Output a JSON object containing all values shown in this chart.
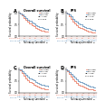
{
  "panels": [
    {
      "title": "A",
      "subtitle": "Overall survival",
      "ylabel": "Survival probability",
      "xlabel": "Follow-up (months)",
      "legend_labels": [
        "VAT-high",
        "VAT-low"
      ],
      "line_colors": [
        "#E8735A",
        "#5B8DB8"
      ],
      "curves": [
        {
          "x": [
            0,
            1,
            3,
            5,
            7,
            9,
            11,
            13,
            15,
            17,
            19,
            21,
            23,
            25,
            27,
            29,
            31
          ],
          "y": [
            1.0,
            0.96,
            0.88,
            0.78,
            0.68,
            0.6,
            0.52,
            0.46,
            0.4,
            0.35,
            0.31,
            0.27,
            0.24,
            0.21,
            0.19,
            0.18,
            0.17
          ]
        },
        {
          "x": [
            0,
            1,
            3,
            5,
            7,
            9,
            11,
            13,
            15,
            17,
            19,
            21,
            23,
            25,
            27,
            29,
            31
          ],
          "y": [
            1.0,
            0.97,
            0.92,
            0.85,
            0.77,
            0.7,
            0.63,
            0.57,
            0.52,
            0.47,
            0.43,
            0.39,
            0.36,
            0.33,
            0.31,
            0.29,
            0.28
          ]
        }
      ],
      "risk_rows": [
        {
          "label": "VAT-high",
          "color": "#E8735A",
          "values": [
            "101",
            "65",
            "41",
            "25",
            "14",
            "6"
          ]
        },
        {
          "label": "VAT-low",
          "color": "#5B8DB8",
          "values": [
            "148",
            "106",
            "74",
            "47",
            "30",
            "17"
          ]
        }
      ],
      "risk_timepoints": [
        "0",
        "6",
        "12",
        "18",
        "24",
        "30"
      ],
      "hr_text": "HR=1.88",
      "p_text": "p=0.003",
      "ylim": [
        0,
        1.05
      ],
      "xlim": [
        0,
        33
      ]
    },
    {
      "title": "B",
      "subtitle": "PFS",
      "ylabel": "Survival probability",
      "xlabel": "Follow-up (months)",
      "legend_labels": [
        "SAT-high",
        "SAT-low"
      ],
      "line_colors": [
        "#E8735A",
        "#5B8DB8"
      ],
      "curves": [
        {
          "x": [
            0,
            1,
            3,
            5,
            7,
            9,
            11,
            13,
            15,
            17,
            19,
            21,
            23,
            25,
            27,
            29,
            31
          ],
          "y": [
            1.0,
            0.95,
            0.85,
            0.73,
            0.62,
            0.53,
            0.45,
            0.39,
            0.33,
            0.29,
            0.25,
            0.22,
            0.19,
            0.17,
            0.15,
            0.14,
            0.13
          ]
        },
        {
          "x": [
            0,
            1,
            3,
            5,
            7,
            9,
            11,
            13,
            15,
            17,
            19,
            21,
            23,
            25,
            27,
            29,
            31
          ],
          "y": [
            1.0,
            0.97,
            0.9,
            0.82,
            0.74,
            0.66,
            0.59,
            0.53,
            0.48,
            0.43,
            0.39,
            0.35,
            0.32,
            0.29,
            0.27,
            0.25,
            0.24
          ]
        }
      ],
      "risk_rows": [
        {
          "label": "SAT-high",
          "color": "#E8735A",
          "values": [
            "101",
            "60",
            "37",
            "22",
            "12",
            "5"
          ]
        },
        {
          "label": "SAT-low",
          "color": "#5B8DB8",
          "values": [
            "148",
            "100",
            "69",
            "43",
            "27",
            "15"
          ]
        }
      ],
      "risk_timepoints": [
        "0",
        "6",
        "12",
        "18",
        "24",
        "30"
      ],
      "hr_text": "HR=1.76",
      "p_text": "p=0.009",
      "ylim": [
        0,
        1.05
      ],
      "xlim": [
        0,
        33
      ]
    },
    {
      "title": "C",
      "subtitle": "Overall survival",
      "ylabel": "Survival probability",
      "xlabel": "Follow-up (months)",
      "legend_labels": [
        "VAT-high",
        "VAT-low"
      ],
      "line_colors": [
        "#E8735A",
        "#5B8DB8"
      ],
      "curves": [
        {
          "x": [
            0,
            1,
            3,
            5,
            7,
            9,
            11,
            13,
            15,
            17,
            19,
            21,
            23,
            25,
            27,
            29,
            31
          ],
          "y": [
            1.0,
            0.94,
            0.84,
            0.72,
            0.62,
            0.53,
            0.46,
            0.4,
            0.34,
            0.3,
            0.26,
            0.23,
            0.2,
            0.18,
            0.16,
            0.15,
            0.14
          ]
        },
        {
          "x": [
            0,
            1,
            3,
            5,
            7,
            9,
            11,
            13,
            15,
            17,
            19,
            21,
            23,
            25,
            27,
            29,
            31
          ],
          "y": [
            1.0,
            0.97,
            0.91,
            0.84,
            0.76,
            0.69,
            0.62,
            0.56,
            0.51,
            0.46,
            0.42,
            0.38,
            0.35,
            0.32,
            0.3,
            0.28,
            0.27
          ]
        }
      ],
      "risk_rows": [
        {
          "label": "VAT-high",
          "color": "#E8735A",
          "values": [
            "124",
            "82",
            "54",
            "33",
            "20",
            "10"
          ]
        },
        {
          "label": "VAT-low",
          "color": "#5B8DB8",
          "values": [
            "125",
            "93",
            "63",
            "40",
            "24",
            "13"
          ]
        }
      ],
      "risk_timepoints": [
        "0",
        "6",
        "12",
        "18",
        "24",
        "30"
      ],
      "hr_text": "HR=1.92",
      "p_text": "p=0.001",
      "ylim": [
        0,
        1.05
      ],
      "xlim": [
        0,
        33
      ]
    },
    {
      "title": "D",
      "subtitle": "PFS",
      "ylabel": "Survival probability",
      "xlabel": "Follow-up (months)",
      "legend_labels": [
        "SAT-high",
        "SAT-low"
      ],
      "line_colors": [
        "#E8735A",
        "#5B8DB8"
      ],
      "curves": [
        {
          "x": [
            0,
            1,
            3,
            5,
            7,
            9,
            11,
            13,
            15,
            17,
            19,
            21,
            23,
            25,
            27,
            29,
            31
          ],
          "y": [
            1.0,
            0.93,
            0.81,
            0.68,
            0.57,
            0.48,
            0.41,
            0.35,
            0.29,
            0.25,
            0.22,
            0.19,
            0.16,
            0.14,
            0.13,
            0.12,
            0.11
          ]
        },
        {
          "x": [
            0,
            1,
            3,
            5,
            7,
            9,
            11,
            13,
            15,
            17,
            19,
            21,
            23,
            25,
            27,
            29,
            31
          ],
          "y": [
            1.0,
            0.96,
            0.88,
            0.8,
            0.71,
            0.63,
            0.56,
            0.5,
            0.45,
            0.4,
            0.36,
            0.33,
            0.3,
            0.27,
            0.25,
            0.23,
            0.22
          ]
        }
      ],
      "risk_rows": [
        {
          "label": "SAT-high",
          "color": "#E8735A",
          "values": [
            "124",
            "77",
            "49",
            "29",
            "17",
            "8"
          ]
        },
        {
          "label": "SAT-low",
          "color": "#5B8DB8",
          "values": [
            "125",
            "88",
            "58",
            "36",
            "21",
            "11"
          ]
        }
      ],
      "risk_timepoints": [
        "0",
        "6",
        "12",
        "18",
        "24",
        "30"
      ],
      "hr_text": "HR=1.85",
      "p_text": "p=0.002",
      "ylim": [
        0,
        1.05
      ],
      "xlim": [
        0,
        33
      ]
    }
  ],
  "background_color": "#ffffff"
}
